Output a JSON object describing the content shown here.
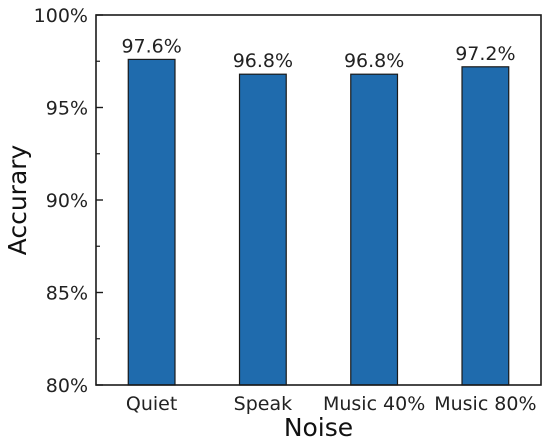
{
  "chart_data": {
    "type": "bar",
    "title": "",
    "xlabel": "Noise",
    "ylabel": "Accurary",
    "categories": [
      "Quiet",
      "Speak",
      "Music 40%",
      "Music 80%"
    ],
    "values": [
      97.6,
      96.8,
      96.8,
      97.2
    ],
    "data_labels": [
      "97.6%",
      "96.8%",
      "96.8%",
      "97.2%"
    ],
    "ylim": [
      80,
      100
    ],
    "yticks": [
      80,
      85,
      90,
      95,
      100
    ],
    "ytick_labels": [
      "80%",
      "85%",
      "90%",
      "95%",
      "100%"
    ],
    "grid": false,
    "legend": "none",
    "bar_color": "#1f6bad",
    "bar_edge_color": "#1a1a1a"
  }
}
